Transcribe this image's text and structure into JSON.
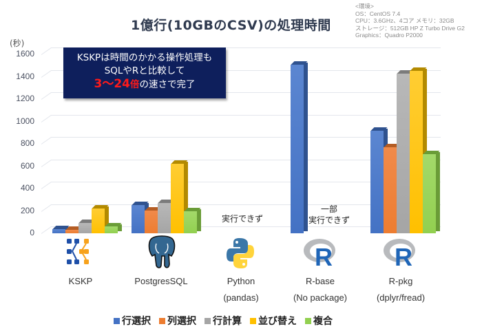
{
  "title": "1億行(10GBのCSV)の処理時間",
  "environment": {
    "lines": [
      "<環境>",
      "OS：CentOS 7.4",
      "CPU：3.6GHz、4コア メモリ：32GB",
      "ストレージ：512GB HP Z Turbo Drive G2",
      "Graphics：Quadro P2000"
    ]
  },
  "callout": {
    "line1": "KSKPは時間のかかる操作処理も",
    "line2": "SQLやRと比較して",
    "highlight_num": "3～24",
    "highlight_unit": "倍",
    "line3_rest": "の速さで完了"
  },
  "notes": {
    "python": "実行できず",
    "rbase_1": "一部",
    "rbase_2": "実行できず"
  },
  "colors": {
    "行選択": "#4472c4",
    "列選択": "#ed7d31",
    "行計算": "#a5a5a5",
    "並び替え": "#ffc000",
    "複合": "#92d050"
  },
  "chart_data": {
    "type": "bar",
    "title": "1億行(10GBのCSV)の処理時間",
    "xlabel": "",
    "ylabel": "(秒)",
    "ylim": [
      0,
      1600
    ],
    "yticks": [
      0,
      200,
      400,
      600,
      800,
      1000,
      1200,
      1400,
      1600
    ],
    "grid": true,
    "legend_position": "bottom",
    "categories": [
      "KSKP",
      "PostgresSQL",
      "Python (pandas)",
      "R-base (No package)",
      "R-pkg (dplyr/fread)"
    ],
    "category_labels": [
      [
        "KSKP",
        ""
      ],
      [
        "PostgresSQL",
        ""
      ],
      [
        "Python",
        "(pandas)"
      ],
      [
        "R-base",
        "(No package)"
      ],
      [
        "R-pkg",
        "(dplyr/fread)"
      ]
    ],
    "series": [
      {
        "name": "行選択",
        "values": [
          40,
          250,
          null,
          1510,
          920
        ]
      },
      {
        "name": "列選択",
        "values": [
          30,
          205,
          null,
          null,
          770
        ]
      },
      {
        "name": "行計算",
        "values": [
          90,
          270,
          null,
          null,
          1430
        ]
      },
      {
        "name": "並び替え",
        "values": [
          220,
          620,
          null,
          null,
          1450
        ]
      },
      {
        "name": "複合",
        "values": [
          60,
          200,
          null,
          null,
          710
        ]
      }
    ],
    "annotations": [
      "実行できず (Python)",
      "一部 実行できず (R-base)"
    ]
  },
  "yticks_labels": [
    "1600",
    "1400",
    "1200",
    "1000",
    "800",
    "600",
    "400",
    "200",
    "0"
  ],
  "legend": [
    "行選択",
    "列選択",
    "行計算",
    "並び替え",
    "複合"
  ]
}
